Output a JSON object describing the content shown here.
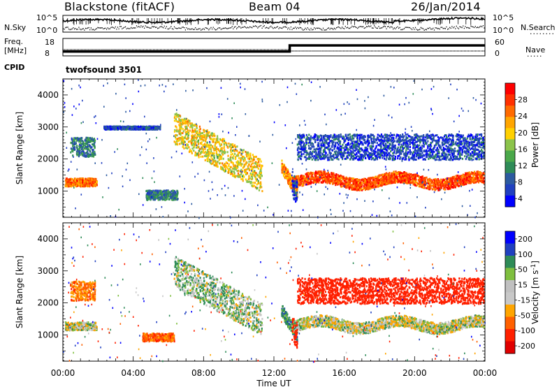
{
  "header": {
    "station": "Blackstone (fitACF)",
    "beam": "Beam 04",
    "date": "26/Jan/2014"
  },
  "side_labels": {
    "nsky": "N.Sky",
    "freq": "Freq.",
    "freq_unit": "[MHz]",
    "cpid": "CPID",
    "nsearch": "N.Search",
    "nave": "Nave"
  },
  "cpid_text": "twofsound 3501",
  "colors": {
    "power": [
      "#0000ff",
      "#2040c0",
      "#2c5aa0",
      "#2e8b57",
      "#4aa84a",
      "#8bc34a",
      "#ffd000",
      "#ffa500",
      "#ff6a00",
      "#ff3000",
      "#ff0000"
    ],
    "velocity_bins": [
      "#0000ff",
      "#2040c0",
      "#2e8b57",
      "#7fbf3f",
      "#c0c0c0",
      "#c8c8c8",
      "#ffa500",
      "#ff6000",
      "#ff2000",
      "#e00000"
    ],
    "ground_scatter": "#b4b4b4"
  },
  "chart_data": [
    {
      "type": "line",
      "panel": "N.Sky / N.Search",
      "y_tick_labels": [
        "10^5",
        "10^0"
      ],
      "x_range_hours": [
        0,
        24
      ],
      "series": [
        {
          "label": "N.Sky",
          "x": [
            0,
            2,
            4,
            6,
            8,
            10,
            12,
            14,
            16,
            18,
            19,
            21,
            24
          ],
          "y": [
            0.6,
            0.6,
            0.55,
            0.5,
            0.6,
            0.55,
            0.5,
            0.6,
            0.65,
            0.7,
            0.55,
            0.5,
            0.6
          ]
        },
        {
          "label": "N.Search",
          "x": [
            0,
            2,
            4,
            6,
            8,
            10,
            12,
            14,
            16,
            18,
            19,
            21,
            24
          ],
          "y": [
            0.25,
            0.25,
            0.2,
            0.2,
            0.25,
            0.25,
            0.2,
            0.25,
            0.3,
            0.3,
            0.2,
            0.2,
            0.25
          ]
        }
      ]
    },
    {
      "type": "line",
      "panel": "Freq / Nave",
      "y_tick_labels": [
        "18",
        "8"
      ],
      "y_tick_labels_right": [
        "60",
        "0"
      ],
      "series": [
        {
          "label": "Freq.",
          "x": [
            0,
            12.9,
            12.9,
            24
          ],
          "y": [
            10.5,
            10.5,
            14,
            14
          ]
        },
        {
          "label": "Nave",
          "x": [
            0,
            12.9,
            12.9,
            24
          ],
          "y": [
            11,
            11,
            11,
            11
          ]
        }
      ]
    },
    {
      "type": "heatmap",
      "panel": "Power",
      "ylabel": "Slant Range [km]",
      "xlabel": "Time UT",
      "x_ticks": [
        "00:00",
        "04:00",
        "08:00",
        "12:00",
        "16:00",
        "20:00",
        "00:00"
      ],
      "y_ticks": [
        1000,
        2000,
        3000,
        4000
      ],
      "ylim": [
        180,
        4500
      ],
      "colorbar_label": "Power [dB]",
      "colorbar_ticks": [
        "28",
        "24",
        "20",
        "16",
        "12",
        "8",
        "4"
      ],
      "colorbar_range": [
        0,
        30
      ],
      "scatter_regions": [
        {
          "t": [
            0.1,
            1.9
          ],
          "r_center": 1300,
          "r_width": 250,
          "value": 24
        },
        {
          "t": [
            0.4,
            1.8
          ],
          "r_center": 2400,
          "r_width": 600,
          "value": 8
        },
        {
          "t": [
            2.3,
            5.5
          ],
          "r_center": 3000,
          "r_width": 100,
          "value": 4
        },
        {
          "t": [
            4.7,
            6.5
          ],
          "r_center": 900,
          "r_width": 300,
          "value": 8
        },
        {
          "t": [
            6.3,
            11.3
          ],
          "r_center": 2400,
          "r_width": 1000,
          "value": 18
        },
        {
          "t": [
            12.4,
            13.3
          ],
          "r_center": 1200,
          "r_width": 400,
          "value": 22
        },
        {
          "t": [
            13.0,
            24.0
          ],
          "r_center": 1350,
          "r_width": 350,
          "value": 26
        },
        {
          "t": [
            13.0,
            24.0
          ],
          "r_center": 2400,
          "r_width": 800,
          "value": 4
        }
      ]
    },
    {
      "type": "heatmap",
      "panel": "Velocity",
      "ylabel": "Slant Range [km]",
      "xlabel": "Time UT",
      "x_ticks": [
        "00:00",
        "04:00",
        "08:00",
        "12:00",
        "16:00",
        "20:00",
        "00:00"
      ],
      "y_ticks": [
        1000,
        2000,
        3000,
        4000
      ],
      "ylim": [
        180,
        4500
      ],
      "colorbar_label": "Velocity [m s^-1]",
      "colorbar_ticks": [
        "200",
        "100",
        "50",
        "15",
        "-15",
        "-50",
        "-100",
        "-200"
      ],
      "colorbar_range": [
        -250,
        250
      ],
      "scatter_regions": [
        {
          "t": [
            0.1,
            1.9
          ],
          "r_center": 1300,
          "r_width": 250,
          "value": 0
        },
        {
          "t": [
            0.4,
            1.8
          ],
          "r_center": 2400,
          "r_width": 600,
          "value": -60
        },
        {
          "t": [
            4.5,
            6.3
          ],
          "r_center": 950,
          "r_width": 250,
          "value": -80
        },
        {
          "t": [
            6.3,
            11.3
          ],
          "r_center": 2400,
          "r_width": 1000,
          "value": 20
        },
        {
          "t": [
            12.4,
            13.3
          ],
          "r_center": 1200,
          "r_width": 400,
          "value": 60
        },
        {
          "t": [
            13.0,
            24.0
          ],
          "r_center": 1350,
          "r_width": 350,
          "value": 0
        },
        {
          "t": [
            13.0,
            24.0
          ],
          "r_center": 2400,
          "r_width": 800,
          "value": -150
        }
      ]
    }
  ]
}
